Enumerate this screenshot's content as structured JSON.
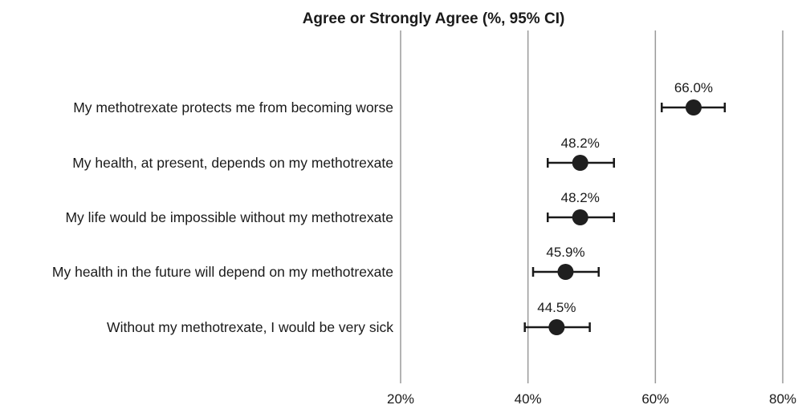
{
  "chart_data": {
    "type": "scatter",
    "title": "Agree or Strongly Agree (%, 95% CI)",
    "xlabel": "",
    "ylabel": "",
    "xlim": [
      20,
      80
    ],
    "x_ticks": [
      20,
      40,
      60,
      80
    ],
    "x_tick_labels": [
      "20%",
      "40%",
      "60%",
      "80%"
    ],
    "grid": "vertical",
    "categories": [
      "My methotrexate protects me from becoming worse",
      "My health, at present, depends on my methotrexate",
      "My life would be impossible without my methotrexate",
      "My health in the future will depend on my methotrexate",
      "Without my methotrexate, I would be very sick"
    ],
    "values": [
      66.0,
      48.2,
      48.2,
      45.9,
      44.5
    ],
    "ci_low": [
      61.0,
      43.1,
      43.1,
      40.8,
      39.5
    ],
    "ci_high": [
      70.9,
      53.5,
      53.5,
      51.1,
      49.7
    ],
    "value_labels": [
      "66.0%",
      "48.2%",
      "48.2%",
      "45.9%",
      "44.5%"
    ],
    "colors": {
      "marker": "#1f1f1f",
      "gridline": "#9a9a9a"
    }
  }
}
